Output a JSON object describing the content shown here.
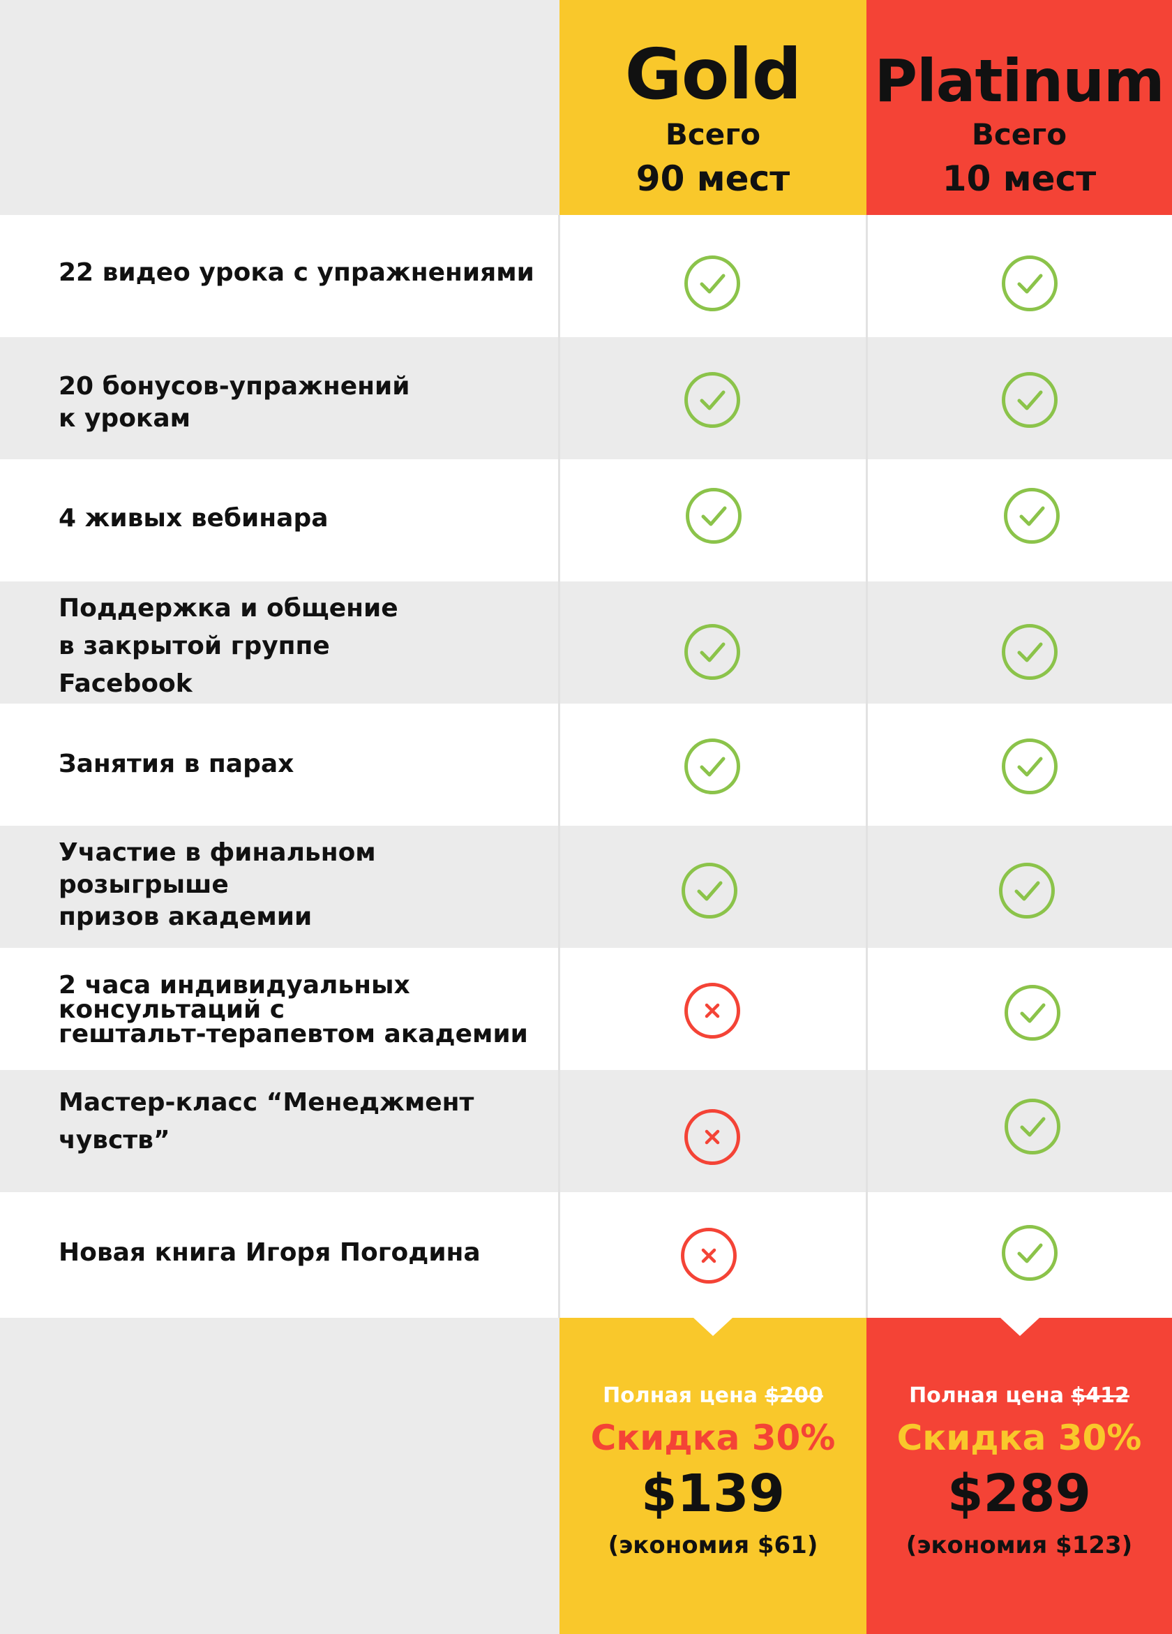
{
  "plans": {
    "gold": {
      "name": "Gold",
      "total": "Всего",
      "seats": "90 мест"
    },
    "platinum": {
      "name": "Platinum",
      "total": "Всего",
      "seats": "10 мест"
    }
  },
  "features": [
    {
      "label": "22 видео урока с упражнениями",
      "gold": "check",
      "platinum": "check"
    },
    {
      "label": "20 бонусов-упражнений\nк урокам",
      "gold": "check",
      "platinum": "check"
    },
    {
      "label": "4 живых вебинара",
      "gold": "check",
      "platinum": "check"
    },
    {
      "label": "Поддержка и общение\nв закрытой группе\nFacebook",
      "gold": "check",
      "platinum": "check"
    },
    {
      "label": "Занятия в парах",
      "gold": "check",
      "platinum": "check"
    },
    {
      "label": "Участие в финальном розыгрыше\nпризов академии",
      "gold": "check",
      "platinum": "check"
    },
    {
      "label": "2 часа индивидуальных\nконсультаций с\nгештальт-терапевтом академии",
      "gold": "cross",
      "platinum": "check"
    },
    {
      "label": "Мастер-класс “Менеджмент\nчувств”",
      "gold": "cross",
      "platinum": "check"
    },
    {
      "label": "Новая книга Игоря Погодина",
      "gold": "cross",
      "platinum": "check"
    }
  ],
  "pricing": {
    "gold": {
      "full_label": "Полная цена ",
      "old_price": "$200",
      "discount": "Скидка 30%",
      "price": "$139",
      "savings": "(экономия $61)"
    },
    "platinum": {
      "full_label": "Полная цена ",
      "old_price": "$412",
      "discount": "Скидка 30%",
      "price": "$289",
      "savings": "(экономия $123)"
    }
  },
  "colors": {
    "gold": "#f9c82b",
    "platinum": "#f44336",
    "check": "#8bc34a",
    "cross": "#f44336",
    "row_alt": "#ebebeb"
  }
}
